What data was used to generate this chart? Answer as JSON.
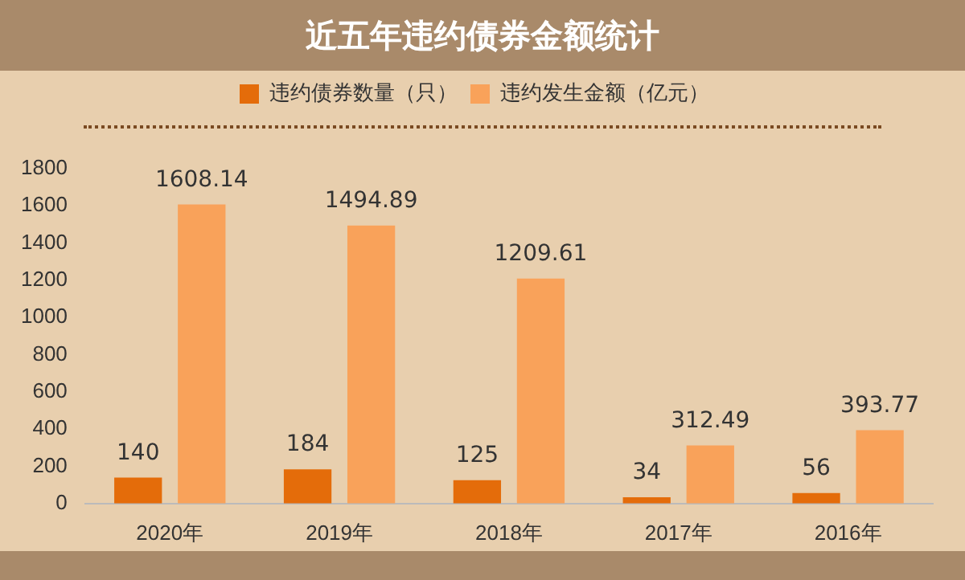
{
  "chart_data": {
    "type": "bar",
    "title": "近五年违约债券金额统计",
    "categories": [
      "2020年",
      "2019年",
      "2018年",
      "2017年",
      "2016年"
    ],
    "series": [
      {
        "name": "违约债券数量（只）",
        "color": "#e46c0a",
        "values": [
          140,
          184,
          125,
          34,
          56
        ]
      },
      {
        "name": "违约发生金额（亿元）",
        "color": "#f9a25a",
        "values": [
          1608.14,
          1494.89,
          1209.61,
          312.49,
          393.77
        ]
      }
    ],
    "ylim": [
      0,
      1800
    ],
    "yticks": [
      0,
      200,
      400,
      600,
      800,
      1000,
      1200,
      1400,
      1600,
      1800
    ],
    "grid": false,
    "legend": "top",
    "data_labels": true
  }
}
